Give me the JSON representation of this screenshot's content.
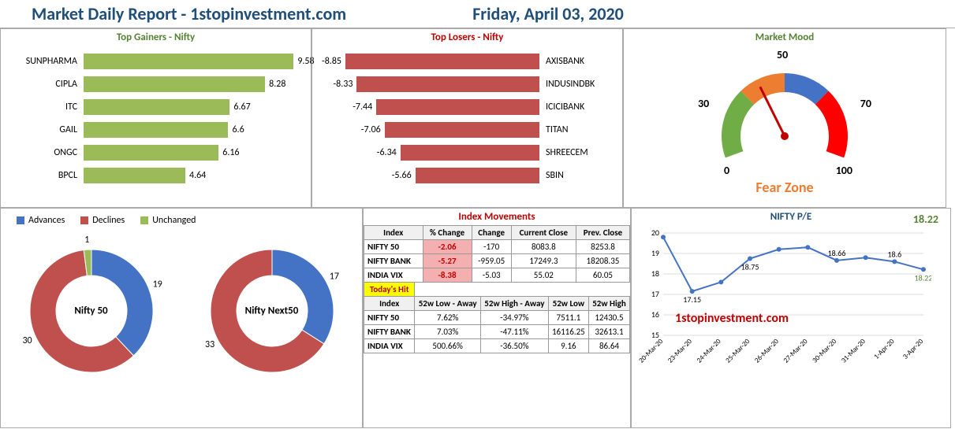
{
  "header": {
    "title": "Market Daily Report - 1stopinvestment.com",
    "date": "Friday, April 03, 2020"
  },
  "gainers": {
    "title": "Top Gainers - Nifty",
    "color": "#9bbb59",
    "max": 10,
    "items": [
      {
        "name": "SUNPHARMA",
        "val": 9.58
      },
      {
        "name": "CIPLA",
        "val": 8.28
      },
      {
        "name": "ITC",
        "val": 6.67
      },
      {
        "name": "GAIL",
        "val": 6.6
      },
      {
        "name": "ONGC",
        "val": 6.16
      },
      {
        "name": "BPCL",
        "val": 4.64
      }
    ]
  },
  "losers": {
    "title": "Top Losers - Nifty",
    "color": "#c0504d",
    "max": 10,
    "items": [
      {
        "name": "AXISBANK",
        "val": -8.85
      },
      {
        "name": "INDUSINDBK",
        "val": -8.33
      },
      {
        "name": "ICICIBANK",
        "val": -7.44
      },
      {
        "name": "TITAN",
        "val": -7.06
      },
      {
        "name": "SHREECEM",
        "val": -6.34
      },
      {
        "name": "SBIN",
        "val": -5.66
      }
    ]
  },
  "mood": {
    "title": "Market Mood",
    "zone": "Fear Zone",
    "needle_angle": -50,
    "labels": {
      "l0": "0",
      "l30": "30",
      "l50": "50",
      "l70": "70",
      "l100": "100"
    },
    "segments": [
      {
        "from": -180,
        "to": -126,
        "color": "#70ad47"
      },
      {
        "from": -126,
        "to": -90,
        "color": "#ed7d31"
      },
      {
        "from": -90,
        "to": -54,
        "color": "#ed7d31"
      },
      {
        "from": -54,
        "to": -18,
        "color": "#4472c4"
      },
      {
        "from": -18,
        "to": 0,
        "color": "#ff0000"
      }
    ]
  },
  "advdec": {
    "legend": {
      "adv": "Advances",
      "dec": "Declines",
      "unc": "Unchanged"
    },
    "colors": {
      "adv": "#4472c4",
      "dec": "#c0504d",
      "unc": "#9bbb59"
    },
    "nifty50": {
      "name": "Nifty 50",
      "adv": 19,
      "dec": 30,
      "unc": 1
    },
    "next50": {
      "name": "Nifty Next50",
      "adv": 17,
      "dec": 33,
      "unc": 0
    }
  },
  "idxmov": {
    "title": "Index Movements",
    "cols1": [
      "Index",
      "% Change",
      "Change",
      "Current Close",
      "Prev. Close"
    ],
    "rows1": [
      {
        "name": "NIFTY 50",
        "pct": "-2.06",
        "chg": "-170",
        "cur": "8083.8",
        "prev": "8253.8"
      },
      {
        "name": "NIFTY BANK",
        "pct": "-5.27",
        "chg": "-959.05",
        "cur": "17249.3",
        "prev": "18208.35"
      },
      {
        "name": "INDIA VIX",
        "pct": "-8.38",
        "chg": "-5.03",
        "cur": "55.02",
        "prev": "60.05"
      }
    ],
    "hit": "Today's Hit",
    "cols2": [
      "Index",
      "52w Low - Away",
      "52w High - Away",
      "52w Low",
      "52w High"
    ],
    "rows2": [
      {
        "name": "NIFTY 50",
        "la": "7.62%",
        "ha": "-34.97%",
        "low": "7511.1",
        "high": "12430.5"
      },
      {
        "name": "NIFTY BANK",
        "la": "7.03%",
        "ha": "-47.11%",
        "low": "16116.25",
        "high": "32613.1"
      },
      {
        "name": "INDIA VIX",
        "la": "500.66%",
        "ha": "-36.50%",
        "low": "9.16",
        "high": "86.64"
      }
    ]
  },
  "pe": {
    "title": "NIFTY P/E",
    "current": "18.22",
    "brand": "1stopinvestment.com",
    "ylim": [
      15,
      20
    ],
    "yticks": [
      15,
      16,
      17,
      18,
      19,
      20
    ],
    "xlabels": [
      "20-Mar-20",
      "23-Mar-20",
      "24-Mar-20",
      "25-Mar-20",
      "26-Mar-20",
      "27-Mar-20",
      "30-Mar-20",
      "31-Mar-20",
      "1-Apr-20",
      "3-Apr-20"
    ],
    "points": [
      19.8,
      17.15,
      17.6,
      18.75,
      19.2,
      19.3,
      18.66,
      18.8,
      18.6,
      18.22
    ],
    "line_color": "#4472c4",
    "label_points": [
      {
        "i": 1,
        "v": "17.15"
      },
      {
        "i": 3,
        "v": "18.75"
      },
      {
        "i": 6,
        "v": "18.66"
      },
      {
        "i": 8,
        "v": "18.6"
      },
      {
        "i": 9,
        "v": "18.22",
        "color": "#548235"
      }
    ]
  }
}
